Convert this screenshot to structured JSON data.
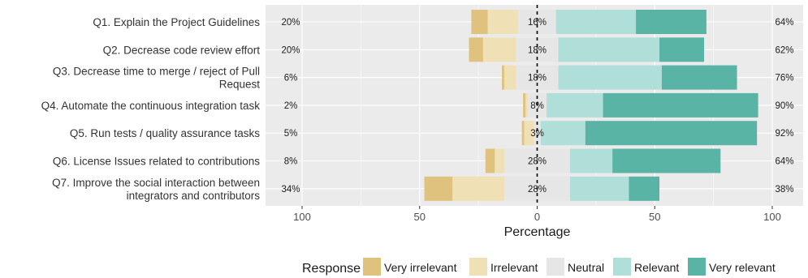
{
  "chart_data": {
    "type": "bar",
    "subtype": "diverging-stacked-likert",
    "xlabel": "Percentage",
    "xlim": [
      -100,
      100
    ],
    "x_ticks": [
      -100,
      -50,
      0,
      50,
      100
    ],
    "x_tick_labels": [
      "100",
      "50",
      "0",
      "50",
      "100"
    ],
    "grid": true,
    "legend_position": "bottom",
    "legend_title": "Response",
    "categories": [
      "Q1. Explain the Project Guidelines",
      "Q2. Decrease code review effort",
      "Q3. Decrease time to merge / reject of Pull Request",
      "Q4. Automate the continuous integration task",
      "Q5. Run tests / quality assurance tasks",
      "Q6. License Issues related to contributions",
      "Q7. Improve the social interaction between integrators and contributors"
    ],
    "category_lines": [
      [
        "Q1. Explain the Project Guidelines"
      ],
      [
        "Q2. Decrease code review effort"
      ],
      [
        "Q3. Decrease time to merge / reject of Pull",
        "Request"
      ],
      [
        "Q4. Automate the continuous integration task"
      ],
      [
        "Q5. Run tests / quality assurance tasks"
      ],
      [
        "Q6. License Issues related to contributions"
      ],
      [
        "Q7. Improve the social interaction between",
        "integrators and contributors"
      ]
    ],
    "series": [
      {
        "name": "Very irrelevant",
        "color": "#dfc27d",
        "values": [
          7,
          6,
          1,
          1,
          1,
          4,
          12
        ]
      },
      {
        "name": "Irrelevant",
        "color": "#f0e0b6",
        "values": [
          13,
          14,
          5,
          1,
          4,
          4,
          22
        ]
      },
      {
        "name": "Neutral",
        "color": "#e6e6e6",
        "values": [
          16,
          18,
          18,
          8,
          3,
          28,
          28
        ]
      },
      {
        "name": "Relevant",
        "color": "#b0dfda",
        "values": [
          34,
          43,
          44,
          24,
          19,
          18,
          25
        ]
      },
      {
        "name": "Very relevant",
        "color": "#5ab4a6",
        "values": [
          30,
          19,
          32,
          66,
          73,
          46,
          13
        ]
      }
    ],
    "left_totals": [
      "20%",
      "20%",
      "6%",
      "2%",
      "5%",
      "8%",
      "34%"
    ],
    "neutral_labels": [
      "16%",
      "18%",
      "18%",
      "8%",
      "3%",
      "28%",
      "28%"
    ],
    "right_totals": [
      "64%",
      "62%",
      "76%",
      "90%",
      "92%",
      "64%",
      "38%"
    ]
  }
}
